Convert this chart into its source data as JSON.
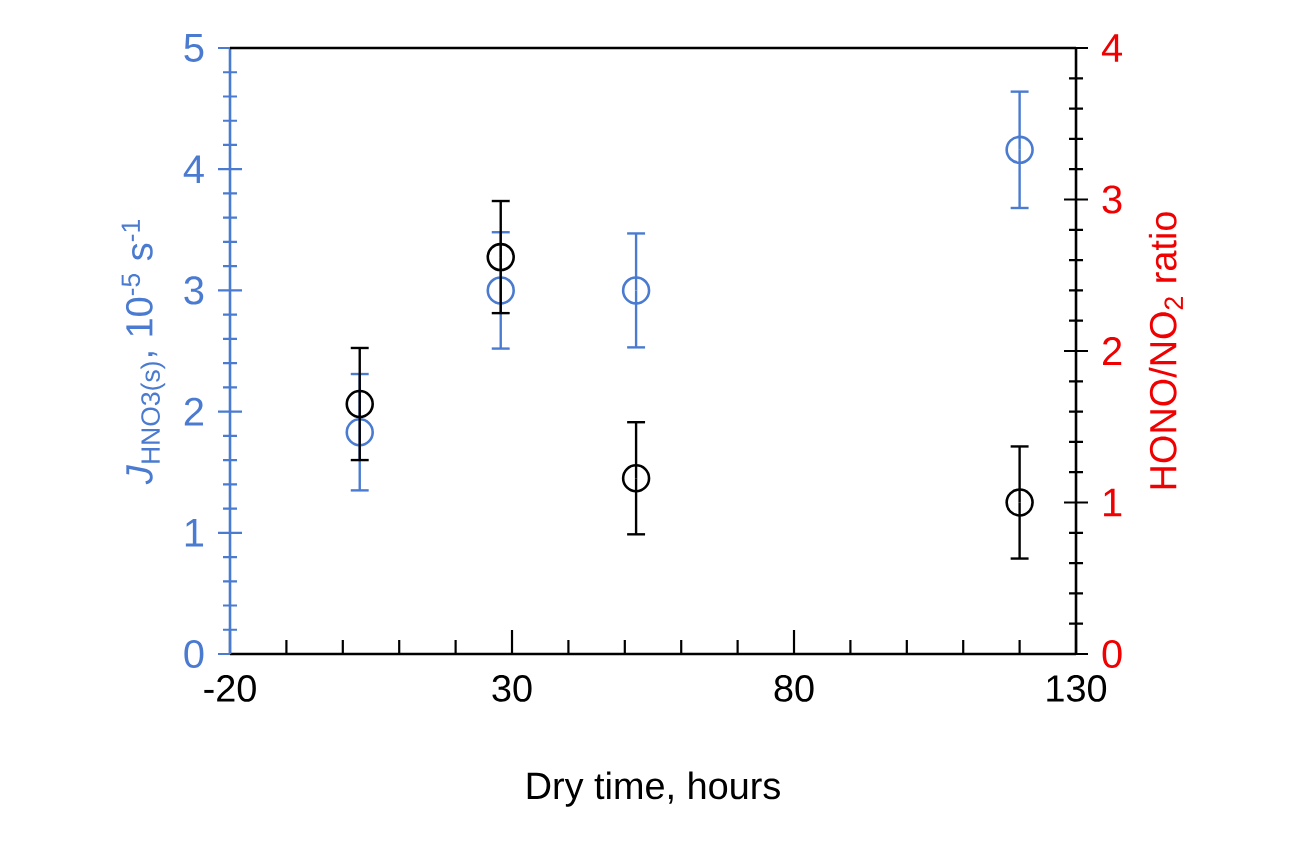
{
  "chart_data": {
    "type": "scatter",
    "xlabel": "Dry time, hours",
    "ylabel": "*J*$_{HNO3(s)}$, 10$^{-5}$ s$^{-1}$",
    "y2label": "HONO/NO$_{2}$ ratio",
    "xlim": [
      -20,
      130
    ],
    "ylim": [
      0,
      5
    ],
    "y2lim": [
      0,
      4
    ],
    "xticks": [
      -20,
      {
        "value": -10,
        "label": null
      },
      {
        "value": 0,
        "label": null
      },
      {
        "value": 10,
        "label": null
      },
      {
        "value": 20,
        "label": null
      },
      30,
      {
        "value": 40,
        "label": null
      },
      {
        "value": 50,
        "label": null
      },
      {
        "value": 60,
        "label": null
      },
      {
        "value": 70,
        "label": null
      },
      80,
      {
        "value": 90,
        "label": null
      },
      {
        "value": 100,
        "label": null
      },
      {
        "value": 110,
        "label": null
      },
      {
        "value": 120,
        "label": null
      },
      130
    ],
    "yticks": [
      0,
      {
        "value": 0.2,
        "label": null
      },
      {
        "value": 0.4,
        "label": null
      },
      {
        "value": 0.6,
        "label": null
      },
      {
        "value": 0.8,
        "label": null
      },
      1,
      {
        "value": 1.2,
        "label": null
      },
      {
        "value": 1.4,
        "label": null
      },
      {
        "value": 1.6,
        "label": null
      },
      {
        "value": 1.8,
        "label": null
      },
      2,
      {
        "value": 2.2,
        "label": null
      },
      {
        "value": 2.4,
        "label": null
      },
      {
        "value": 2.6,
        "label": null
      },
      {
        "value": 2.8,
        "label": null
      },
      3,
      {
        "value": 3.2,
        "label": null
      },
      {
        "value": 3.4,
        "label": null
      },
      {
        "value": 3.6,
        "label": null
      },
      {
        "value": 3.8,
        "label": null
      },
      4,
      {
        "value": 4.2,
        "label": null
      },
      {
        "value": 4.4,
        "label": null
      },
      {
        "value": 4.6,
        "label": null
      },
      {
        "value": 4.8,
        "label": null
      },
      5
    ],
    "y2ticks": [
      0,
      {
        "value": 0.2,
        "label": null
      },
      {
        "value": 0.4,
        "label": null
      },
      {
        "value": 0.6,
        "label": null
      },
      {
        "value": 0.8,
        "label": null
      },
      1,
      {
        "value": 1.2,
        "label": null
      },
      {
        "value": 1.4,
        "label": null
      },
      {
        "value": 1.6,
        "label": null
      },
      {
        "value": 1.8,
        "label": null
      },
      2,
      {
        "value": 2.2,
        "label": null
      },
      {
        "value": 2.4,
        "label": null
      },
      {
        "value": 2.6,
        "label": null
      },
      {
        "value": 2.8,
        "label": null
      },
      3,
      {
        "value": 3.2,
        "label": null
      },
      {
        "value": 3.4,
        "label": null
      },
      {
        "value": 3.6,
        "label": null
      },
      {
        "value": 3.8,
        "label": null
      },
      4
    ],
    "marker": "circle",
    "series": [
      {
        "color": "#4a7bd0",
        "x": [
          3,
          28,
          52,
          120
        ],
        "values": [
          1.83,
          3.0,
          3.0,
          4.16
        ],
        "errors": [
          0.48,
          0.48,
          0.47,
          0.48
        ]
      },
      {
        "color": "#000000",
        "axis": "y2",
        "x": [
          3,
          28,
          52,
          120
        ],
        "values": [
          1.65,
          2.62,
          1.16,
          1.0
        ],
        "errors": [
          0.37,
          0.37,
          0.37,
          0.37
        ]
      }
    ]
  }
}
